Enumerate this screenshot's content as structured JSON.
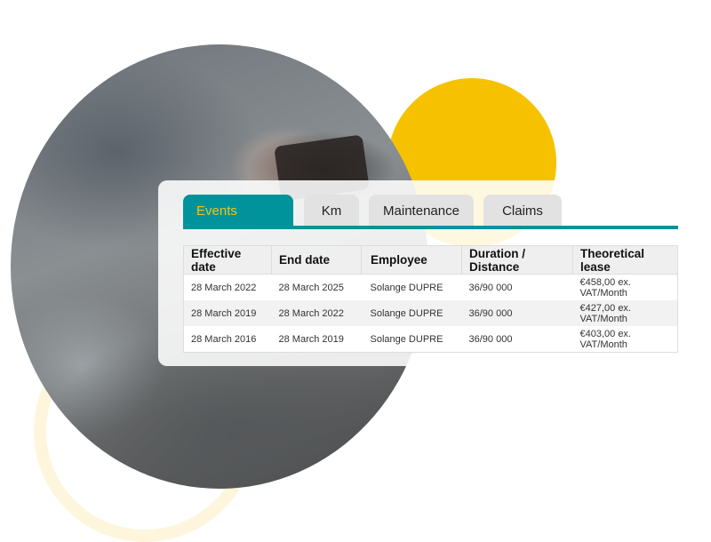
{
  "colors": {
    "accent": "#00939c",
    "tab_active_text": "#f2c31a",
    "yellow": "#f6c200"
  },
  "tabs": [
    {
      "label": "Events",
      "active": true
    },
    {
      "label": "Km"
    },
    {
      "label": "Maintenance"
    },
    {
      "label": "Claims"
    }
  ],
  "table": {
    "headers": [
      "Effective date",
      "End date",
      "Employee",
      "Duration / Distance",
      "Theoretical lease"
    ],
    "rows": [
      [
        "28 March 2022",
        "28 March 2025",
        "Solange DUPRE",
        "36/90 000",
        "€458,00 ex. VAT/Month"
      ],
      [
        "28 March 2019",
        "28 March 2022",
        "Solange DUPRE",
        "36/90 000",
        "€427,00 ex. VAT/Month"
      ],
      [
        "28 March 2016",
        "28 March 2019",
        "Solange DUPRE",
        "36/90 000",
        "€403,00 ex. VAT/Month"
      ]
    ]
  }
}
